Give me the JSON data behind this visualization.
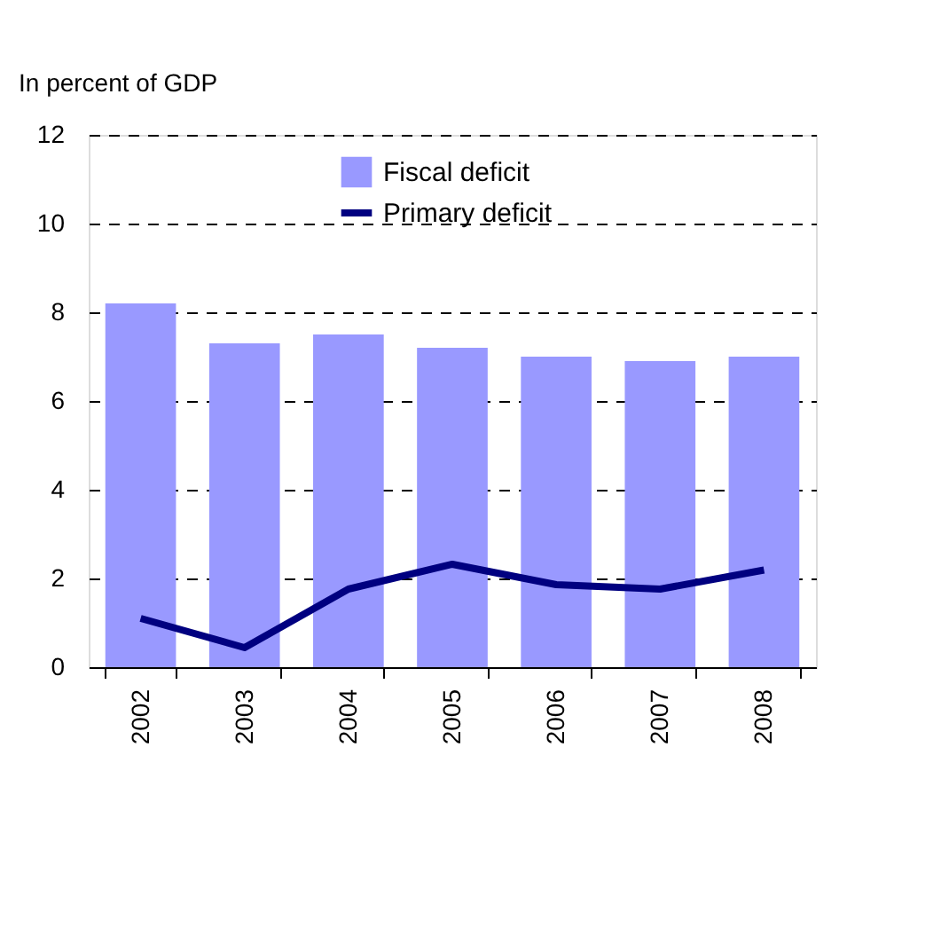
{
  "chart_data": {
    "type": "bar",
    "ylabel": "In percent of GDP",
    "categories": [
      "2002",
      "2003",
      "2004",
      "2005",
      "2006",
      "2007",
      "2008"
    ],
    "series": [
      {
        "name": "Fiscal deficit",
        "color": "#9999ff",
        "values": [
          8.2,
          7.3,
          7.5,
          7.2,
          7.0,
          6.9,
          7.0
        ]
      },
      {
        "name": "Primary deficit",
        "type": "line",
        "color": "#000080",
        "values": [
          1.1,
          0.44,
          1.76,
          2.32,
          1.86,
          1.76,
          2.19
        ]
      }
    ],
    "ylim": [
      0,
      12
    ],
    "yticks": [
      0,
      2,
      4,
      6,
      8,
      10,
      12
    ],
    "grid": "y",
    "legend": "top",
    "marker": "none",
    "line_style": "solid"
  }
}
